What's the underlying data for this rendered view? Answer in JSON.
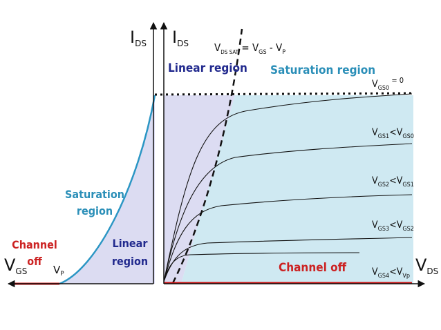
{
  "colors": {
    "linear_fill": "#dcdcf2",
    "saturation_fill": "#cfe9f2",
    "transfer_curve": "#2b96c4",
    "channel_off_line": "#cc1111",
    "channel_off_text": "#cc2222",
    "linear_text": "#222a8e",
    "saturation_text": "#2b8fb8"
  },
  "left_panel": {
    "y_axis_label": {
      "main": "I",
      "sub": "DS"
    },
    "x_axis_label": {
      "main": "V",
      "sub": "GS"
    },
    "vp_label": {
      "main": "V",
      "sub": "P"
    },
    "channel_off_line1": "Channel",
    "channel_off_line2": "off",
    "saturation_line1": "Saturation",
    "saturation_line2": "region",
    "linear_line1": "Linear",
    "linear_line2": "region"
  },
  "right_panel": {
    "y_axis_label": {
      "main": "I",
      "sub": "DS"
    },
    "x_axis_label": {
      "main": "V",
      "sub": "DS"
    },
    "linear_region_label": "Linear region",
    "saturation_region_label": "Saturation region",
    "channel_off_label": "Channel off",
    "vdssat_formula": {
      "v1": "V",
      "s1": "DS SAT",
      "eq": " = ",
      "v2": "V",
      "s2": "GS",
      "minus": " - ",
      "v3": "V",
      "s3": "P"
    },
    "curve_labels": [
      {
        "main": "V",
        "sub": "GS0",
        "rest": " = 0",
        "rest_sub": ""
      },
      {
        "main": "V",
        "sub": "GS1",
        "rest": "<V",
        "rest_sub": "GS0"
      },
      {
        "main": "V",
        "sub": "GS2",
        "rest": "<V",
        "rest_sub": "GS1"
      },
      {
        "main": "V",
        "sub": "GS3",
        "rest": "<V",
        "rest_sub": "GS2"
      },
      {
        "main": "V",
        "sub": "GS4",
        "rest": "<V",
        "rest_sub": "Vp"
      }
    ]
  }
}
